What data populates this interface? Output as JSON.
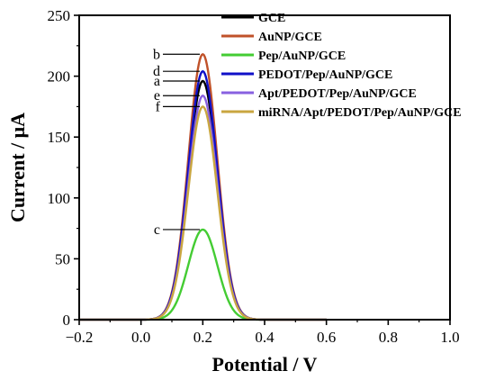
{
  "chart_data": {
    "type": "line",
    "xlabel": "Potential / V",
    "ylabel": "Current / μA",
    "xlim": [
      -0.2,
      1.0
    ],
    "ylim": [
      0,
      250
    ],
    "x_ticks": [
      "−0.2",
      "0.0",
      "0.2",
      "0.4",
      "0.6",
      "0.8",
      "1.0"
    ],
    "x_tick_values": [
      -0.2,
      0.0,
      0.2,
      0.4,
      0.6,
      0.8,
      1.0
    ],
    "y_ticks": [
      "0",
      "50",
      "100",
      "150",
      "200",
      "250"
    ],
    "y_tick_values": [
      0,
      50,
      100,
      150,
      200,
      250
    ],
    "legend_position": "top-right",
    "grid": false,
    "peak_potential": 0.2,
    "series": [
      {
        "name": "GCE",
        "label": "a",
        "color": "#000000",
        "x": [
          -0.2,
          0.0,
          0.1,
          0.15,
          0.2,
          0.25,
          0.3,
          0.4,
          0.6
        ],
        "y": [
          0,
          2,
          38,
          142,
          196,
          142,
          38,
          2,
          0
        ]
      },
      {
        "name": "AuNP/GCE",
        "label": "b",
        "color": "#c0522a",
        "x": [
          -0.2,
          0.0,
          0.1,
          0.15,
          0.2,
          0.25,
          0.3,
          0.4,
          0.6
        ],
        "y": [
          0,
          3,
          42,
          158,
          218,
          158,
          42,
          3,
          0
        ]
      },
      {
        "name": "Pep/AuNP/GCE",
        "label": "c",
        "color": "#44cc33",
        "x": [
          -0.2,
          0.0,
          0.1,
          0.15,
          0.2,
          0.25,
          0.3,
          0.4,
          0.6
        ],
        "y": [
          0,
          1,
          14,
          54,
          74,
          54,
          14,
          1,
          0
        ]
      },
      {
        "name": "PEDOT/Pep/AuNP/GCE",
        "label": "d",
        "color": "#1010c8",
        "x": [
          -0.2,
          0.0,
          0.1,
          0.15,
          0.2,
          0.25,
          0.3,
          0.4,
          0.6
        ],
        "y": [
          0,
          3,
          40,
          148,
          204,
          148,
          40,
          3,
          0
        ]
      },
      {
        "name": "Apt/PEDOT/Pep/AuNP/GCE",
        "label": "e",
        "color": "#8860e0",
        "x": [
          -0.2,
          0.0,
          0.1,
          0.15,
          0.2,
          0.25,
          0.3,
          0.4,
          0.6
        ],
        "y": [
          0,
          2,
          36,
          134,
          184,
          134,
          36,
          2,
          0
        ]
      },
      {
        "name": "miRNA/Apt/PEDOT/Pep/AuNP/GCE",
        "label": "f",
        "color": "#c9a640",
        "x": [
          -0.2,
          0.0,
          0.1,
          0.15,
          0.2,
          0.25,
          0.3,
          0.4,
          0.6
        ],
        "y": [
          0,
          2,
          34,
          127,
          175,
          127,
          34,
          2,
          0
        ]
      }
    ],
    "curve_labels": [
      {
        "text": "b",
        "y": 218
      },
      {
        "text": "d",
        "y": 204
      },
      {
        "text": "a",
        "y": 196
      },
      {
        "text": "e",
        "y": 184
      },
      {
        "text": "f",
        "y": 175
      },
      {
        "text": "c",
        "y": 74
      }
    ]
  }
}
